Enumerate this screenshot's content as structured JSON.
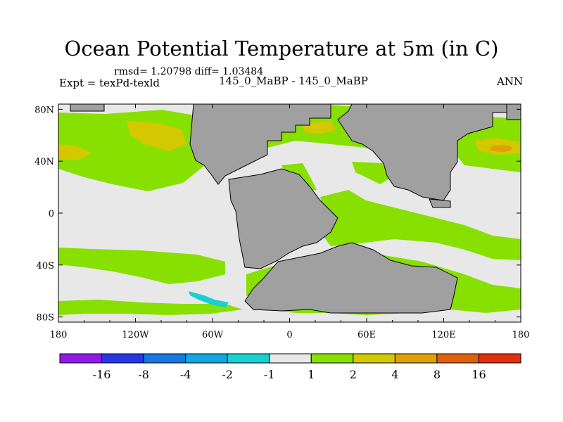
{
  "title": "Ocean Potential Temperature at 5m (in C)",
  "stats": "rmsd= 1.20798 diff= 1.03484",
  "expt": "Expt = texPd-texld",
  "cases": "145_0_MaBP - 145_0_MaBP",
  "season": "ANN",
  "axes": {
    "x_ticks": [
      {
        "lon": -180,
        "label": "180"
      },
      {
        "lon": -120,
        "label": "120W"
      },
      {
        "lon": -60,
        "label": "60W"
      },
      {
        "lon": 0,
        "label": "0"
      },
      {
        "lon": 60,
        "label": "60E"
      },
      {
        "lon": 120,
        "label": "120E"
      },
      {
        "lon": 180,
        "label": "180"
      }
    ],
    "y_ticks": [
      {
        "lat": 80,
        "label": "80N"
      },
      {
        "lat": 40,
        "label": "40N"
      },
      {
        "lat": 0,
        "label": "0"
      },
      {
        "lat": -40,
        "label": "40S"
      },
      {
        "lat": -80,
        "label": "80S"
      }
    ]
  },
  "colorbar": {
    "colors": [
      "#9018e8",
      "#2838e0",
      "#1878e0",
      "#10a8e0",
      "#18d0d0",
      "#e8e8e8",
      "#88e000",
      "#d4c800",
      "#e0a008",
      "#e06010",
      "#e03010"
    ],
    "labels": [
      "-16",
      "-8",
      "-4",
      "-2",
      "-1",
      "1",
      "2",
      "4",
      "8",
      "16"
    ]
  },
  "palette": {
    "land": "#a0a0a0",
    "neutral": "#e8e8e8",
    "green": "#88e000",
    "yellow": "#d4c800",
    "orange": "#e0a008",
    "cyan": "#18d0d0"
  }
}
